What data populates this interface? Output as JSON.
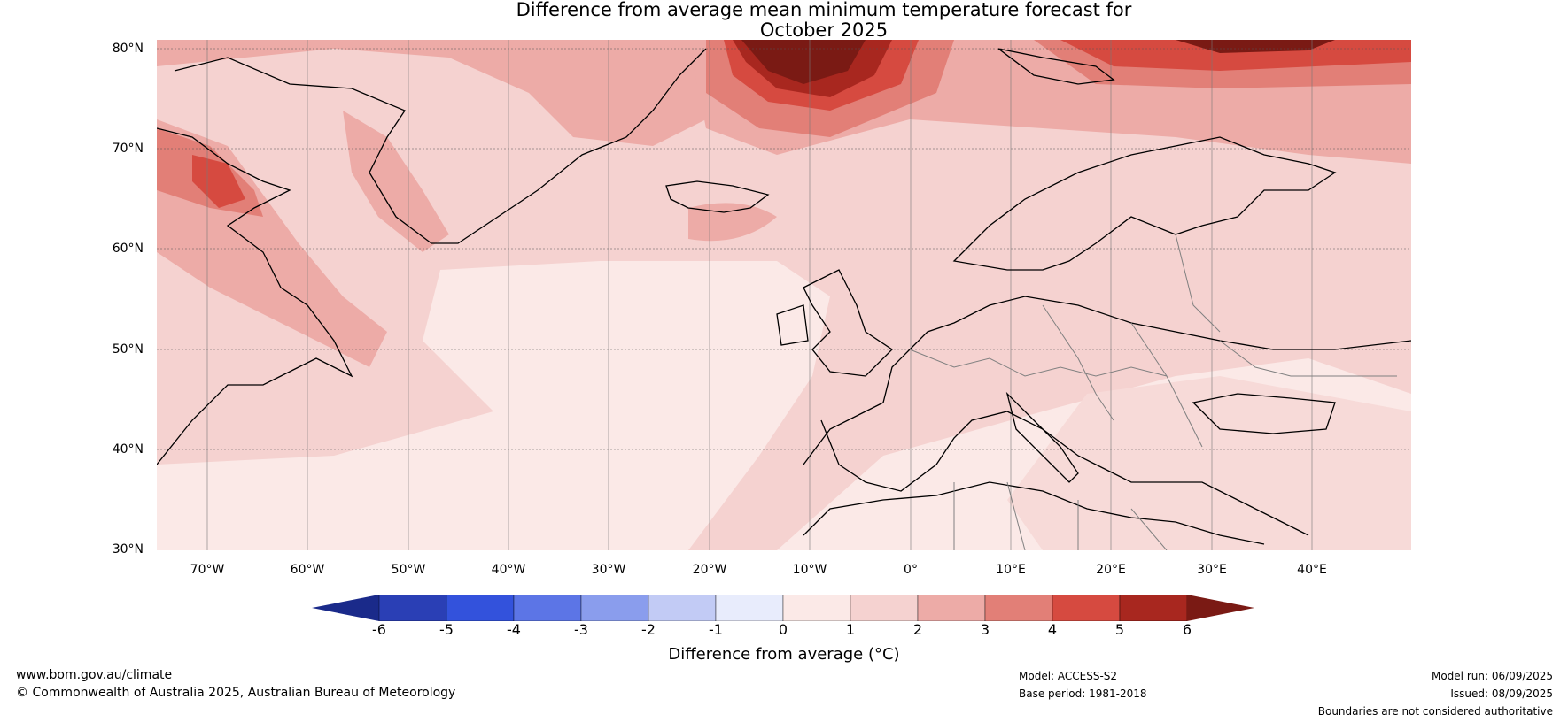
{
  "title_line1": "Difference from average mean minimum temperature forecast for",
  "title_line2": "October 2025",
  "lat_labels": [
    "80°N",
    "70°N",
    "60°N",
    "50°N",
    "40°N",
    "30°N"
  ],
  "lon_labels": [
    "70°W",
    "60°W",
    "50°W",
    "40°W",
    "30°W",
    "20°W",
    "10°W",
    "0°",
    "10°E",
    "20°E",
    "30°E",
    "40°E"
  ],
  "colorbar": {
    "ticks": [
      "-6",
      "-5",
      "-4",
      "-3",
      "-2",
      "-1",
      "0",
      "1",
      "2",
      "3",
      "4",
      "5",
      "6"
    ],
    "colors": [
      "#1a2a8a",
      "#2a3fb5",
      "#3352dc",
      "#5c75e6",
      "#8a9ded",
      "#c2cbf5",
      "#e8ecfc",
      "#fbe9e7",
      "#f5d2d0",
      "#edaba7",
      "#e27f77",
      "#d64a40",
      "#a8271f",
      "#7a1a14"
    ],
    "label": "Difference from average (°C)"
  },
  "footer": {
    "url": "www.bom.gov.au/climate",
    "copyright": "© Commonwealth of Australia 2025, Australian Bureau of Meteorology",
    "model": "Model: ACCESS-S2",
    "base_period": "Base period: 1981-2018",
    "model_run": "Model run: 06/09/2025",
    "issued": "Issued: 08/09/2025",
    "disclaimer": "Boundaries are not considered authoritative"
  }
}
